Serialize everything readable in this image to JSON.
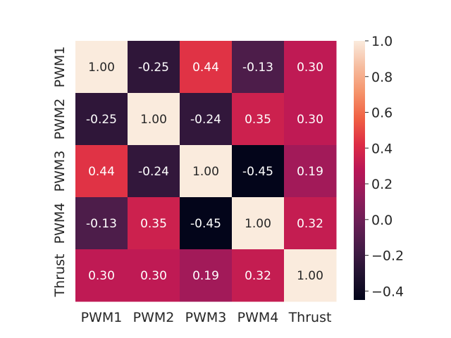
{
  "chart_data": {
    "type": "heatmap",
    "title": "",
    "xlabel": "",
    "ylabel": "",
    "x_labels": [
      "PWM1",
      "PWM2",
      "PWM3",
      "PWM4",
      "Thrust"
    ],
    "y_labels": [
      "PWM1",
      "PWM2",
      "PWM3",
      "PWM4",
      "Thrust"
    ],
    "matrix": [
      [
        1.0,
        -0.25,
        0.44,
        -0.13,
        0.3
      ],
      [
        -0.25,
        1.0,
        -0.24,
        0.35,
        0.3
      ],
      [
        0.44,
        -0.24,
        1.0,
        -0.45,
        0.19
      ],
      [
        -0.13,
        0.35,
        -0.45,
        1.0,
        0.32
      ],
      [
        0.3,
        0.3,
        0.19,
        0.32,
        1.0
      ]
    ],
    "annotations": [
      [
        "1.00",
        "-0.25",
        "0.44",
        "-0.13",
        "0.30"
      ],
      [
        "-0.25",
        "1.00",
        "-0.24",
        "0.35",
        "0.30"
      ],
      [
        "0.44",
        "-0.24",
        "1.00",
        "-0.45",
        "0.19"
      ],
      [
        "-0.13",
        "0.35",
        "-0.45",
        "1.00",
        "0.32"
      ],
      [
        "0.30",
        "0.30",
        "0.19",
        "0.32",
        "1.00"
      ]
    ],
    "colorbar": {
      "colormap": "rocket",
      "vmin": -0.45,
      "vmax": 1.0,
      "ticks": [
        -0.4,
        -0.2,
        0.0,
        0.2,
        0.4,
        0.6,
        0.8,
        1.0
      ],
      "tick_labels": [
        "−0.4",
        "−0.2",
        "0.0",
        "0.2",
        "0.4",
        "0.6",
        "0.8",
        "1.0"
      ]
    },
    "grid": false,
    "legend": "colorbar-right"
  }
}
